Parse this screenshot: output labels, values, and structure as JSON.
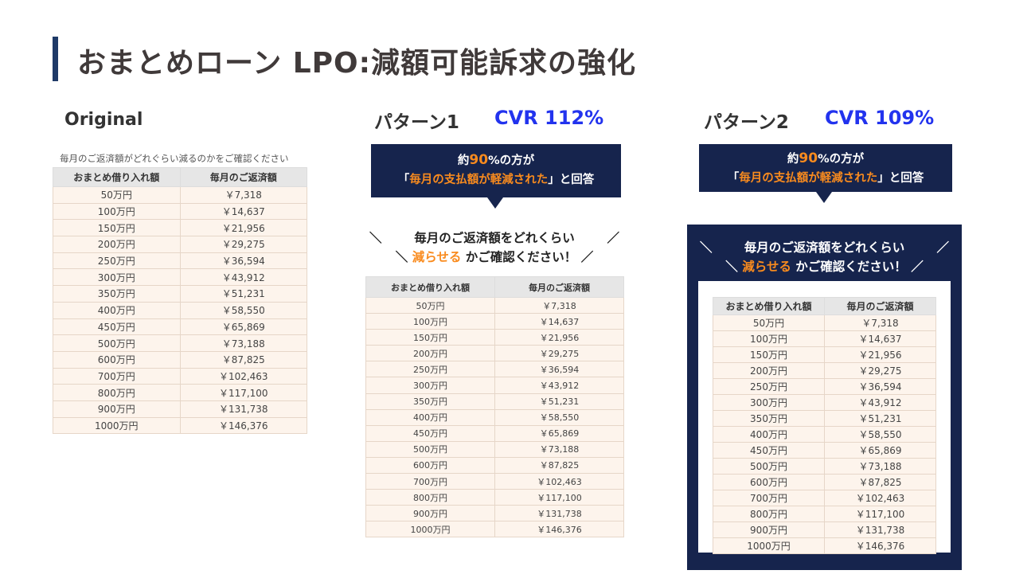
{
  "title": "おまとめローン LPO:減額可能訴求の強化",
  "columns": {
    "original": {
      "heading": "Original"
    },
    "pattern1": {
      "heading": "パターン1",
      "cvr": "CVR 112%"
    },
    "pattern2": {
      "heading": "パターン2",
      "cvr": "CVR 109%"
    }
  },
  "original_caption": "毎月のご返済額がどれぐらい減るのかをご確認ください",
  "banner": {
    "line1_pre": "約",
    "line1_num": "90",
    "line1_post": "%の方が",
    "line2_open": "「",
    "line2_highlight": "毎月の支払額が軽減された",
    "line2_post": "」と回答"
  },
  "cta": {
    "slash_left": "＼",
    "slash_right": "／",
    "line1": "毎月のご返済額をどれくらい",
    "line2_highlight": "減らせる",
    "line2_post": "かご確認ください！"
  },
  "table": {
    "headers": [
      "おまとめ借り入れ額",
      "毎月のご返済額"
    ],
    "rows": [
      [
        "50万円",
        "￥7,318"
      ],
      [
        "100万円",
        "￥14,637"
      ],
      [
        "150万円",
        "￥21,956"
      ],
      [
        "200万円",
        "￥29,275"
      ],
      [
        "250万円",
        "￥36,594"
      ],
      [
        "300万円",
        "￥43,912"
      ],
      [
        "350万円",
        "￥51,231"
      ],
      [
        "400万円",
        "￥58,550"
      ],
      [
        "450万円",
        "￥65,869"
      ],
      [
        "500万円",
        "￥73,188"
      ],
      [
        "600万円",
        "￥87,825"
      ],
      [
        "700万円",
        "￥102,463"
      ],
      [
        "800万円",
        "￥117,100"
      ],
      [
        "900万円",
        "￥131,738"
      ],
      [
        "1000万円",
        "￥146,376"
      ]
    ]
  }
}
